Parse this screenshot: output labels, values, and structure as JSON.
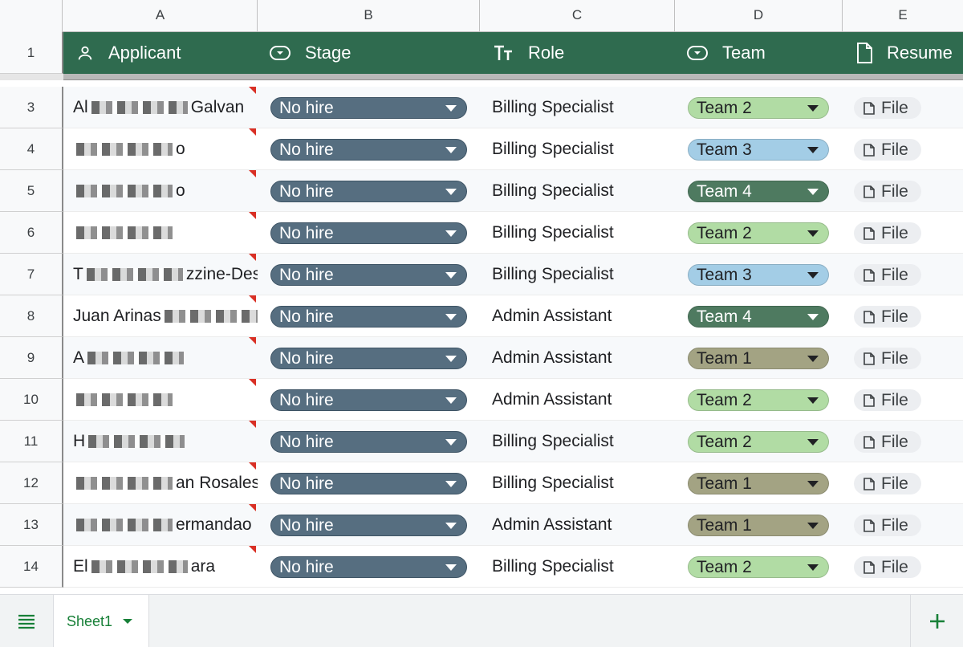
{
  "column_letters": [
    "A",
    "B",
    "C",
    "D",
    "E"
  ],
  "header_row_number": "1",
  "headers": {
    "applicant": "Applicant",
    "stage": "Stage",
    "role": "Role",
    "team": "Team",
    "resume": "Resume"
  },
  "rows": [
    {
      "num": "3",
      "name_start": "Al",
      "name_end": "Galvan",
      "stage": "No hire",
      "role": "Billing Specialist",
      "team": "Team 2",
      "resume": "File"
    },
    {
      "num": "4",
      "name_start": "",
      "name_end": "o",
      "stage": "No hire",
      "role": "Billing Specialist",
      "team": "Team 3",
      "resume": "File"
    },
    {
      "num": "5",
      "name_start": "",
      "name_end": "o",
      "stage": "No hire",
      "role": "Billing Specialist",
      "team": "Team 4",
      "resume": "File"
    },
    {
      "num": "6",
      "name_start": "",
      "name_end": "",
      "stage": "No hire",
      "role": "Billing Specialist",
      "team": "Team 2",
      "resume": "File"
    },
    {
      "num": "7",
      "name_start": "T",
      "name_end": "zzine-Desna",
      "stage": "No hire",
      "role": "Billing Specialist",
      "team": "Team 3",
      "resume": "File"
    },
    {
      "num": "8",
      "name_start": "Juan Arinas",
      "name_end": "",
      "stage": "No hire",
      "role": "Admin Assistant",
      "team": "Team 4",
      "resume": "File"
    },
    {
      "num": "9",
      "name_start": "A",
      "name_end": "",
      "stage": "No hire",
      "role": "Admin Assistant",
      "team": "Team 1",
      "resume": "File"
    },
    {
      "num": "10",
      "name_start": "",
      "name_end": "",
      "stage": "No hire",
      "role": "Admin Assistant",
      "team": "Team 2",
      "resume": "File"
    },
    {
      "num": "11",
      "name_start": "H",
      "name_end": "",
      "stage": "No hire",
      "role": "Billing Specialist",
      "team": "Team 2",
      "resume": "File"
    },
    {
      "num": "12",
      "name_start": "",
      "name_end": "an Rosales",
      "stage": "No hire",
      "role": "Billing Specialist",
      "team": "Team 1",
      "resume": "File"
    },
    {
      "num": "13",
      "name_start": "",
      "name_end": "ermandao",
      "stage": "No hire",
      "role": "Admin Assistant",
      "team": "Team 1",
      "resume": "File"
    },
    {
      "num": "14",
      "name_start": "El",
      "name_end": "ara",
      "stage": "No hire",
      "role": "Billing Specialist",
      "team": "Team 2",
      "resume": "File"
    }
  ],
  "team_colors": {
    "Team 1": {
      "bg": "#a3a383",
      "fg": "#202124"
    },
    "Team 2": {
      "bg": "#b1dca4",
      "fg": "#202124"
    },
    "Team 3": {
      "bg": "#a3cde6",
      "fg": "#202124"
    },
    "Team 4": {
      "bg": "#4e7a60",
      "fg": "#ffffff"
    }
  },
  "colors": {
    "header_bg": "#2f6b4f",
    "stage_chip": "#566e80",
    "sheet_tab_text": "#188038"
  },
  "sheet_tab": "Sheet1"
}
